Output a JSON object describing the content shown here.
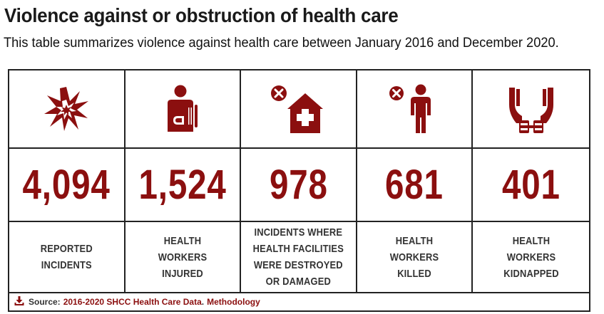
{
  "title": "Violence against or obstruction of health care",
  "subtitle": "This table summarizes violence against health care between January 2016 and December 2020.",
  "colors": {
    "accent": "#8b0f0f",
    "text": "#333333",
    "border": "#222222"
  },
  "chart_data": {
    "type": "table",
    "categories": [
      "REPORTED INCIDENTS",
      "HEALTH WORKERS INJURED",
      "INCIDENTS WHERE HEALTH FACILITIES WERE DESTROYED OR DAMAGED",
      "HEALTH WORKERS KILLED",
      "HEALTH WORKERS KIDNAPPED"
    ],
    "values": [
      4094,
      1524,
      978,
      681,
      401
    ],
    "cells": [
      {
        "icon": "explosion-icon",
        "value": "4,094",
        "label": "REPORTED INCIDENTS"
      },
      {
        "icon": "injured-person-icon",
        "value": "1,524",
        "label": "HEALTH WORKERS INJURED"
      },
      {
        "icon": "destroyed-health-facility-icon",
        "value": "978",
        "label": "INCIDENTS WHERE HEALTH FACILITIES WERE DESTROYED OR DAMAGED"
      },
      {
        "icon": "killed-person-icon",
        "value": "681",
        "label": "HEALTH WORKERS KILLED"
      },
      {
        "icon": "handcuffed-hands-icon",
        "value": "401",
        "label": "HEALTH WORKERS KIDNAPPED"
      }
    ]
  },
  "source": {
    "prefix": "Source:",
    "link_text": "2016-2020 SHCC Health Care Data",
    "separator": ".",
    "methodology_text": "Methodology",
    "icon": "download-icon"
  }
}
